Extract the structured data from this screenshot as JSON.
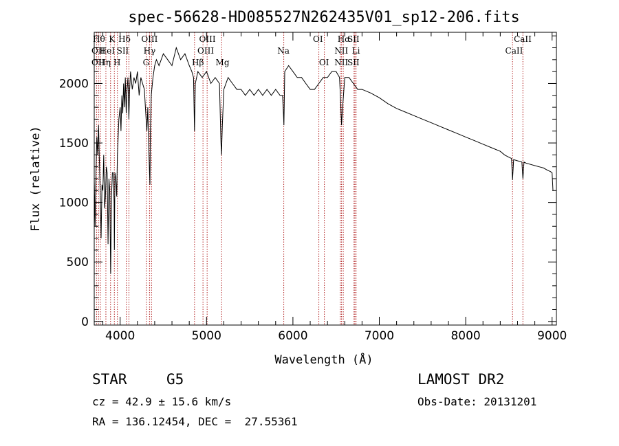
{
  "chart_data": {
    "type": "line",
    "title": "spec-56628-HD085527N262435V01_sp12-206.fits",
    "xlabel": "Wavelength (Å)",
    "ylabel": "Flux (relative)",
    "xlim": [
      3700,
      9050
    ],
    "ylim": [
      -30,
      2430
    ],
    "x_ticks": [
      4000,
      5000,
      6000,
      7000,
      8000,
      9000
    ],
    "y_ticks": [
      0,
      500,
      1000,
      1500,
      2000
    ],
    "grid": false,
    "series": [
      {
        "x": [
          3700,
          3710,
          3720,
          3730,
          3740,
          3750,
          3760,
          3770,
          3780,
          3790,
          3800,
          3810,
          3820,
          3830,
          3840,
          3850,
          3860,
          3870,
          3880,
          3890,
          3900,
          3910,
          3920,
          3930,
          3933,
          3940,
          3950,
          3960,
          3968,
          3975,
          3985,
          4000,
          4010,
          4020,
          4030,
          4040,
          4050,
          4060,
          4070,
          4080,
          4090,
          4101,
          4110,
          4120,
          4140,
          4160,
          4180,
          4200,
          4220,
          4240,
          4260,
          4280,
          4300,
          4310,
          4320,
          4330,
          4340,
          4345,
          4350,
          4360,
          4380,
          4400,
          4420,
          4450,
          4500,
          4550,
          4600,
          4650,
          4700,
          4750,
          4800,
          4830,
          4850,
          4861,
          4870,
          4900,
          4950,
          5000,
          5050,
          5100,
          5150,
          5167,
          5173,
          5183,
          5200,
          5250,
          5300,
          5350,
          5400,
          5450,
          5500,
          5550,
          5600,
          5650,
          5700,
          5750,
          5800,
          5850,
          5880,
          5890,
          5896,
          5905,
          5950,
          6000,
          6050,
          6100,
          6150,
          6200,
          6250,
          6300,
          6350,
          6400,
          6450,
          6500,
          6540,
          6555,
          6563,
          6570,
          6600,
          6650,
          6700,
          6750,
          6800,
          6900,
          7000,
          7100,
          7200,
          7300,
          7400,
          7500,
          7600,
          7700,
          7800,
          7900,
          8000,
          8100,
          8200,
          8300,
          8400,
          8450,
          8500,
          8530,
          8542,
          8555,
          8600,
          8650,
          8662,
          8675,
          8700,
          8750,
          8800,
          8850,
          8900,
          8950,
          8980,
          9000,
          9010
        ],
        "y": [
          1200,
          800,
          1250,
          1550,
          1400,
          1650,
          1350,
          1050,
          700,
          1150,
          1100,
          1400,
          950,
          1050,
          1300,
          1250,
          650,
          1200,
          1100,
          400,
          1050,
          1250,
          1250,
          1000,
          600,
          1250,
          1200,
          1050,
          1400,
          1500,
          1700,
          1800,
          1600,
          1900,
          1750,
          2000,
          1800,
          2050,
          1750,
          1950,
          2050,
          1700,
          1950,
          2100,
          1950,
          2050,
          2000,
          2100,
          1900,
          2050,
          2000,
          1950,
          1700,
          1600,
          1800,
          1500,
          1250,
          1150,
          1600,
          1900,
          2050,
          2150,
          2200,
          2150,
          2250,
          2200,
          2150,
          2300,
          2200,
          2250,
          2150,
          2100,
          2050,
          1600,
          2000,
          2100,
          2050,
          2100,
          2000,
          2050,
          2000,
          1500,
          1400,
          1650,
          1950,
          2050,
          2000,
          1950,
          1950,
          1900,
          1950,
          1900,
          1950,
          1900,
          1950,
          1900,
          1950,
          1900,
          1900,
          1750,
          1650,
          2100,
          2150,
          2100,
          2050,
          2050,
          2000,
          1950,
          1950,
          2000,
          2050,
          2050,
          2100,
          2100,
          2050,
          1800,
          1650,
          1750,
          2050,
          2050,
          2000,
          1950,
          1950,
          1920,
          1880,
          1830,
          1790,
          1760,
          1730,
          1700,
          1670,
          1640,
          1610,
          1580,
          1550,
          1520,
          1490,
          1460,
          1430,
          1400,
          1380,
          1370,
          1190,
          1360,
          1350,
          1340,
          1200,
          1340,
          1330,
          1320,
          1310,
          1300,
          1290,
          1270,
          1260,
          1250,
          1100
        ]
      }
    ],
    "line_markers": [
      {
        "w": 3727,
        "label": "OII"
      },
      {
        "w": 3750,
        "label": "Hθ"
      },
      {
        "w": 3771,
        "label": "Hθ"
      },
      {
        "w": 3835,
        "label": "Hη"
      },
      {
        "w": 3889,
        "label": "HeI"
      },
      {
        "w": 3933,
        "label": "K"
      },
      {
        "w": 3968,
        "label": "H"
      },
      {
        "w": 4072,
        "label": "SII"
      },
      {
        "w": 4102,
        "label": "Hδ"
      },
      {
        "w": 4304,
        "label": "G"
      },
      {
        "w": 4340,
        "label": "Hγ"
      },
      {
        "w": 4363,
        "label": "OIII"
      },
      {
        "w": 4861,
        "label": "Hβ"
      },
      {
        "w": 4959,
        "label": "OIII"
      },
      {
        "w": 5007,
        "label": "OIII"
      },
      {
        "w": 5175,
        "label": "Mg"
      },
      {
        "w": 5894,
        "label": "Na"
      },
      {
        "w": 6300,
        "label": "OI"
      },
      {
        "w": 6364,
        "label": "OI"
      },
      {
        "w": 6548,
        "label": "NII"
      },
      {
        "w": 6563,
        "label": "Hα"
      },
      {
        "w": 6583,
        "label": "NII"
      },
      {
        "w": 6707,
        "label": "Li"
      },
      {
        "w": 6717,
        "label": "SII"
      },
      {
        "w": 6731,
        "label": "SII"
      },
      {
        "w": 8542,
        "label": "CaII"
      },
      {
        "w": 8662,
        "label": "CaII"
      }
    ],
    "line_labels": [
      {
        "w": 3755,
        "label": "Hθ",
        "row": 1
      },
      {
        "w": 3745,
        "label": "OII",
        "row": 2
      },
      {
        "w": 3745,
        "label": "OII",
        "row": 3
      },
      {
        "w": 3850,
        "label": "HeI",
        "row": 2
      },
      {
        "w": 3820,
        "label": "Hη",
        "row": 3
      },
      {
        "w": 3905,
        "label": "K",
        "row": 1
      },
      {
        "w": 3965,
        "label": "H",
        "row": 3
      },
      {
        "w": 4050,
        "label": "Hδ",
        "row": 1
      },
      {
        "w": 4030,
        "label": "SII",
        "row": 2
      },
      {
        "w": 4340,
        "label": "OIII",
        "row": 1
      },
      {
        "w": 4340,
        "label": "Hγ",
        "row": 2
      },
      {
        "w": 4300,
        "label": "G",
        "row": 3
      },
      {
        "w": 5010,
        "label": "OIII",
        "row": 1
      },
      {
        "w": 4990,
        "label": "OIII",
        "row": 2
      },
      {
        "w": 4900,
        "label": "Hβ",
        "row": 3
      },
      {
        "w": 5185,
        "label": "Mg",
        "row": 3
      },
      {
        "w": 5890,
        "label": "Na",
        "row": 2
      },
      {
        "w": 6290,
        "label": "OI",
        "row": 1
      },
      {
        "w": 6360,
        "label": "OI",
        "row": 3
      },
      {
        "w": 6590,
        "label": "Hα",
        "row": 1
      },
      {
        "w": 6700,
        "label": "SII",
        "row": 1
      },
      {
        "w": 6560,
        "label": "NII",
        "row": 2
      },
      {
        "w": 6730,
        "label": "Li",
        "row": 2
      },
      {
        "w": 6560,
        "label": "NII",
        "row": 3
      },
      {
        "w": 6700,
        "label": "SII",
        "row": 3
      },
      {
        "w": 8660,
        "label": "CaII",
        "row": 1
      },
      {
        "w": 8560,
        "label": "CaII",
        "row": 2
      }
    ],
    "colors": {
      "spectrum": "#000000",
      "markers": "#b22222"
    }
  },
  "info": {
    "object_type": "STAR",
    "subclass": "G5",
    "survey": "LAMOST DR2",
    "cz": "cz = 42.9 ± 15.6 km/s",
    "obs_date": "Obs-Date: 20131201",
    "coords": "RA = 136.12454, DEC =  27.55361"
  }
}
